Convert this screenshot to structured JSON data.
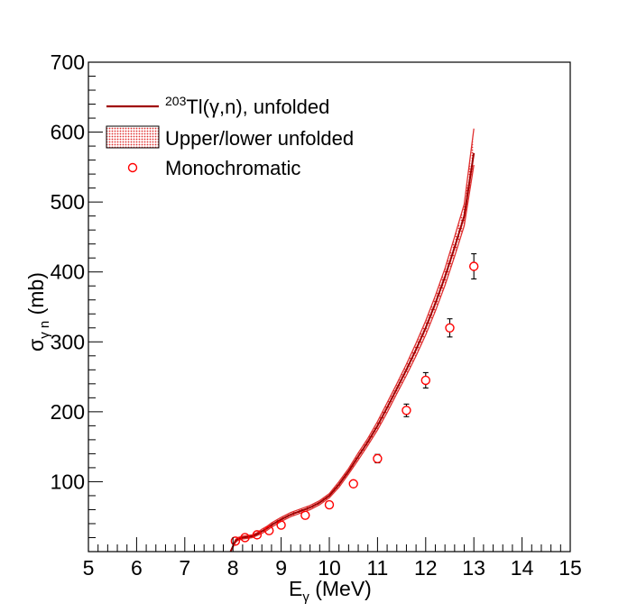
{
  "chart_data": {
    "type": "line",
    "xlabel_main": "E",
    "xlabel_sub": "γ",
    "xlabel_tail": " (MeV)",
    "ylabel_main": "σ",
    "ylabel_sub": "γ n",
    "ylabel_tail": " (mb)",
    "xlim": [
      5,
      15
    ],
    "ylim": [
      0,
      700
    ],
    "xticks": [
      5,
      6,
      7,
      8,
      9,
      10,
      11,
      12,
      13,
      14,
      15
    ],
    "yticks": [
      100,
      200,
      300,
      400,
      500,
      600,
      700
    ],
    "legend_position": "top-left",
    "legend": {
      "unfolded_sup": "203",
      "unfolded_text": "Tl(γ,n), unfolded",
      "band_text": "Upper/lower unfolded",
      "mono_text": "Monochromatic"
    },
    "colors": {
      "curve": "#a00000",
      "band": "#e03030",
      "points": "#ff0000",
      "errorbars": "#000000"
    },
    "series": [
      {
        "kind": "unfolded",
        "x": [
          7.95,
          8.05,
          8.1,
          8.2,
          8.3,
          8.4,
          8.5,
          8.6,
          8.7,
          8.8,
          9.0,
          9.2,
          9.4,
          9.6,
          9.8,
          10.0,
          10.2,
          10.4,
          10.6,
          10.8,
          11.0,
          11.2,
          11.4,
          11.6,
          11.8,
          12.0,
          12.2,
          12.4,
          12.6,
          12.8,
          13.0
        ],
        "y": [
          0,
          15,
          18,
          20,
          21,
          22,
          25,
          29,
          33,
          38,
          46,
          53,
          58,
          63,
          70,
          80,
          96,
          115,
          136,
          157,
          180,
          206,
          233,
          260,
          289,
          320,
          355,
          393,
          435,
          480,
          570
        ],
        "y_lower": [
          0,
          13,
          16,
          18,
          19,
          20,
          23,
          26,
          30,
          35,
          43,
          50,
          55,
          60,
          67,
          77,
          92,
          111,
          131,
          152,
          174,
          199,
          226,
          252,
          280,
          310,
          344,
          381,
          422,
          466,
          553
        ],
        "y_upper": [
          0,
          17,
          20,
          22,
          23,
          24,
          27,
          32,
          36,
          41,
          49,
          56,
          61,
          66,
          73,
          83,
          100,
          119,
          141,
          162,
          186,
          213,
          240,
          268,
          298,
          330,
          366,
          405,
          450,
          497,
          605
        ]
      },
      {
        "kind": "monochromatic",
        "x": [
          8.05,
          8.25,
          8.5,
          8.75,
          9.0,
          9.5,
          10.0,
          10.5,
          11.0,
          11.6,
          12.0,
          12.5,
          13.0
        ],
        "y": [
          15,
          20,
          24,
          30,
          38,
          52,
          67,
          97,
          133,
          202,
          245,
          320,
          408
        ],
        "err": [
          2,
          2,
          2,
          2,
          3,
          3,
          3,
          4,
          6,
          9,
          11,
          13,
          18
        ]
      }
    ]
  }
}
